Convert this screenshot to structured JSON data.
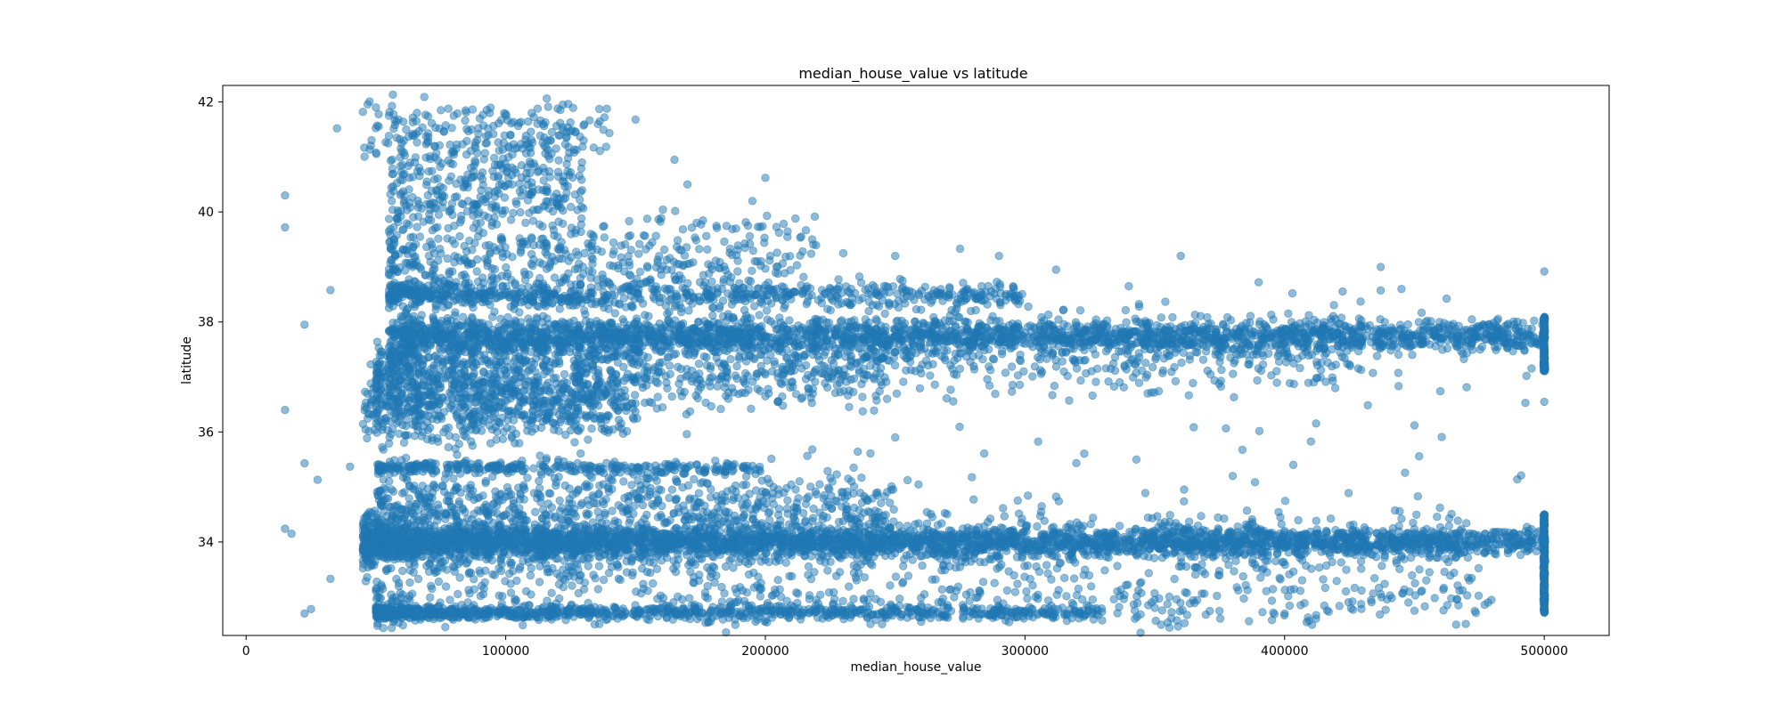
{
  "chart_data": {
    "type": "scatter",
    "title": "median_house_value vs latitude",
    "xlabel": "median_house_value",
    "ylabel": "latitude",
    "xlim": [
      -9000,
      525000
    ],
    "ylim": [
      32.3,
      42.3
    ],
    "xticks": [
      0,
      100000,
      200000,
      300000,
      400000,
      500000
    ],
    "xtick_labels": [
      "0",
      "100000",
      "200000",
      "300000",
      "400000",
      "500000"
    ],
    "yticks": [
      34,
      36,
      38,
      40,
      42
    ],
    "ytick_labels": [
      "34",
      "36",
      "38",
      "40",
      "42"
    ],
    "grid": false,
    "legend": "none",
    "marker_color": "#1f77b4",
    "marker_alpha": 0.5,
    "point_count_estimate": 20640,
    "series": [
      {
        "values": [
          [
            15000,
            40.3
          ],
          [
            15000,
            39.72
          ],
          [
            15000,
            36.4
          ],
          [
            15000,
            34.24
          ],
          [
            17500,
            34.15
          ],
          [
            22500,
            37.95
          ],
          [
            22500,
            35.43
          ],
          [
            22500,
            32.7
          ],
          [
            25000,
            32.78
          ],
          [
            27500,
            35.13
          ],
          [
            32500,
            33.33
          ],
          [
            32500,
            38.58
          ],
          [
            35000,
            41.52
          ],
          [
            40000,
            35.37
          ],
          [
            45000,
            41.82
          ],
          [
            50000,
            41.9
          ],
          [
            55000,
            41.75
          ],
          [
            60000,
            41.1
          ],
          [
            65000,
            40.9
          ],
          [
            75000,
            41.85
          ],
          [
            80000,
            41.75
          ],
          [
            90000,
            41.7
          ],
          [
            100000,
            41.78
          ],
          [
            110000,
            41.8
          ],
          [
            120000,
            41.88
          ],
          [
            122000,
            41.95
          ],
          [
            130000,
            41.3
          ],
          [
            150000,
            41.68
          ],
          [
            165000,
            40.95
          ],
          [
            170000,
            40.5
          ],
          [
            195000,
            40.2
          ],
          [
            200000,
            40.62
          ],
          [
            230000,
            39.25
          ],
          [
            250000,
            39.2
          ],
          [
            275000,
            39.33
          ],
          [
            290000,
            39.2
          ],
          [
            312000,
            38.95
          ],
          [
            340000,
            38.65
          ],
          [
            360000,
            39.2
          ],
          [
            390000,
            38.72
          ],
          [
            403000,
            38.52
          ],
          [
            437000,
            39.0
          ],
          [
            445000,
            38.6
          ],
          [
            500000,
            38.92
          ],
          [
            60000,
            37.9
          ],
          [
            80000,
            37.8
          ],
          [
            100000,
            37.75
          ],
          [
            120000,
            37.9
          ],
          [
            140000,
            37.8
          ],
          [
            160000,
            37.7
          ],
          [
            180000,
            37.9
          ],
          [
            200000,
            37.75
          ],
          [
            220000,
            37.85
          ],
          [
            240000,
            37.7
          ],
          [
            260000,
            37.8
          ],
          [
            280000,
            37.75
          ],
          [
            300000,
            37.8
          ],
          [
            320000,
            37.7
          ],
          [
            340000,
            37.8
          ],
          [
            360000,
            37.75
          ],
          [
            380000,
            37.8
          ],
          [
            400000,
            37.7
          ],
          [
            420000,
            37.8
          ],
          [
            440000,
            37.75
          ],
          [
            460000,
            37.7
          ],
          [
            480000,
            37.65
          ],
          [
            500000,
            37.8
          ],
          [
            500000,
            37.5
          ],
          [
            500000,
            36.55
          ],
          [
            60000,
            36.7
          ],
          [
            80000,
            36.4
          ],
          [
            100000,
            36.8
          ],
          [
            120000,
            36.6
          ],
          [
            150000,
            36.9
          ],
          [
            60000,
            34.0
          ],
          [
            80000,
            33.9
          ],
          [
            100000,
            34.05
          ],
          [
            120000,
            33.95
          ],
          [
            140000,
            34.0
          ],
          [
            160000,
            33.9
          ],
          [
            180000,
            34.05
          ],
          [
            200000,
            34.0
          ],
          [
            220000,
            33.9
          ],
          [
            240000,
            34.05
          ],
          [
            260000,
            34.0
          ],
          [
            280000,
            33.95
          ],
          [
            300000,
            34.0
          ],
          [
            320000,
            33.9
          ],
          [
            340000,
            34.05
          ],
          [
            360000,
            33.95
          ],
          [
            380000,
            34.0
          ],
          [
            400000,
            33.9
          ],
          [
            420000,
            34.05
          ],
          [
            440000,
            34.0
          ],
          [
            460000,
            33.9
          ],
          [
            480000,
            34.05
          ],
          [
            500000,
            34.0
          ],
          [
            500000,
            33.6
          ],
          [
            500000,
            34.5
          ],
          [
            70000,
            32.7
          ],
          [
            100000,
            32.75
          ],
          [
            130000,
            32.7
          ],
          [
            160000,
            32.8
          ],
          [
            200000,
            32.75
          ],
          [
            250000,
            32.8
          ],
          [
            300000,
            32.75
          ],
          [
            350000,
            32.8
          ],
          [
            400000,
            32.7
          ],
          [
            450000,
            32.75
          ],
          [
            500000,
            32.72
          ],
          [
            260000,
            32.55
          ],
          [
            450000,
            36.12
          ],
          [
            380000,
            35.2
          ],
          [
            250000,
            35.9
          ]
        ]
      }
    ]
  }
}
